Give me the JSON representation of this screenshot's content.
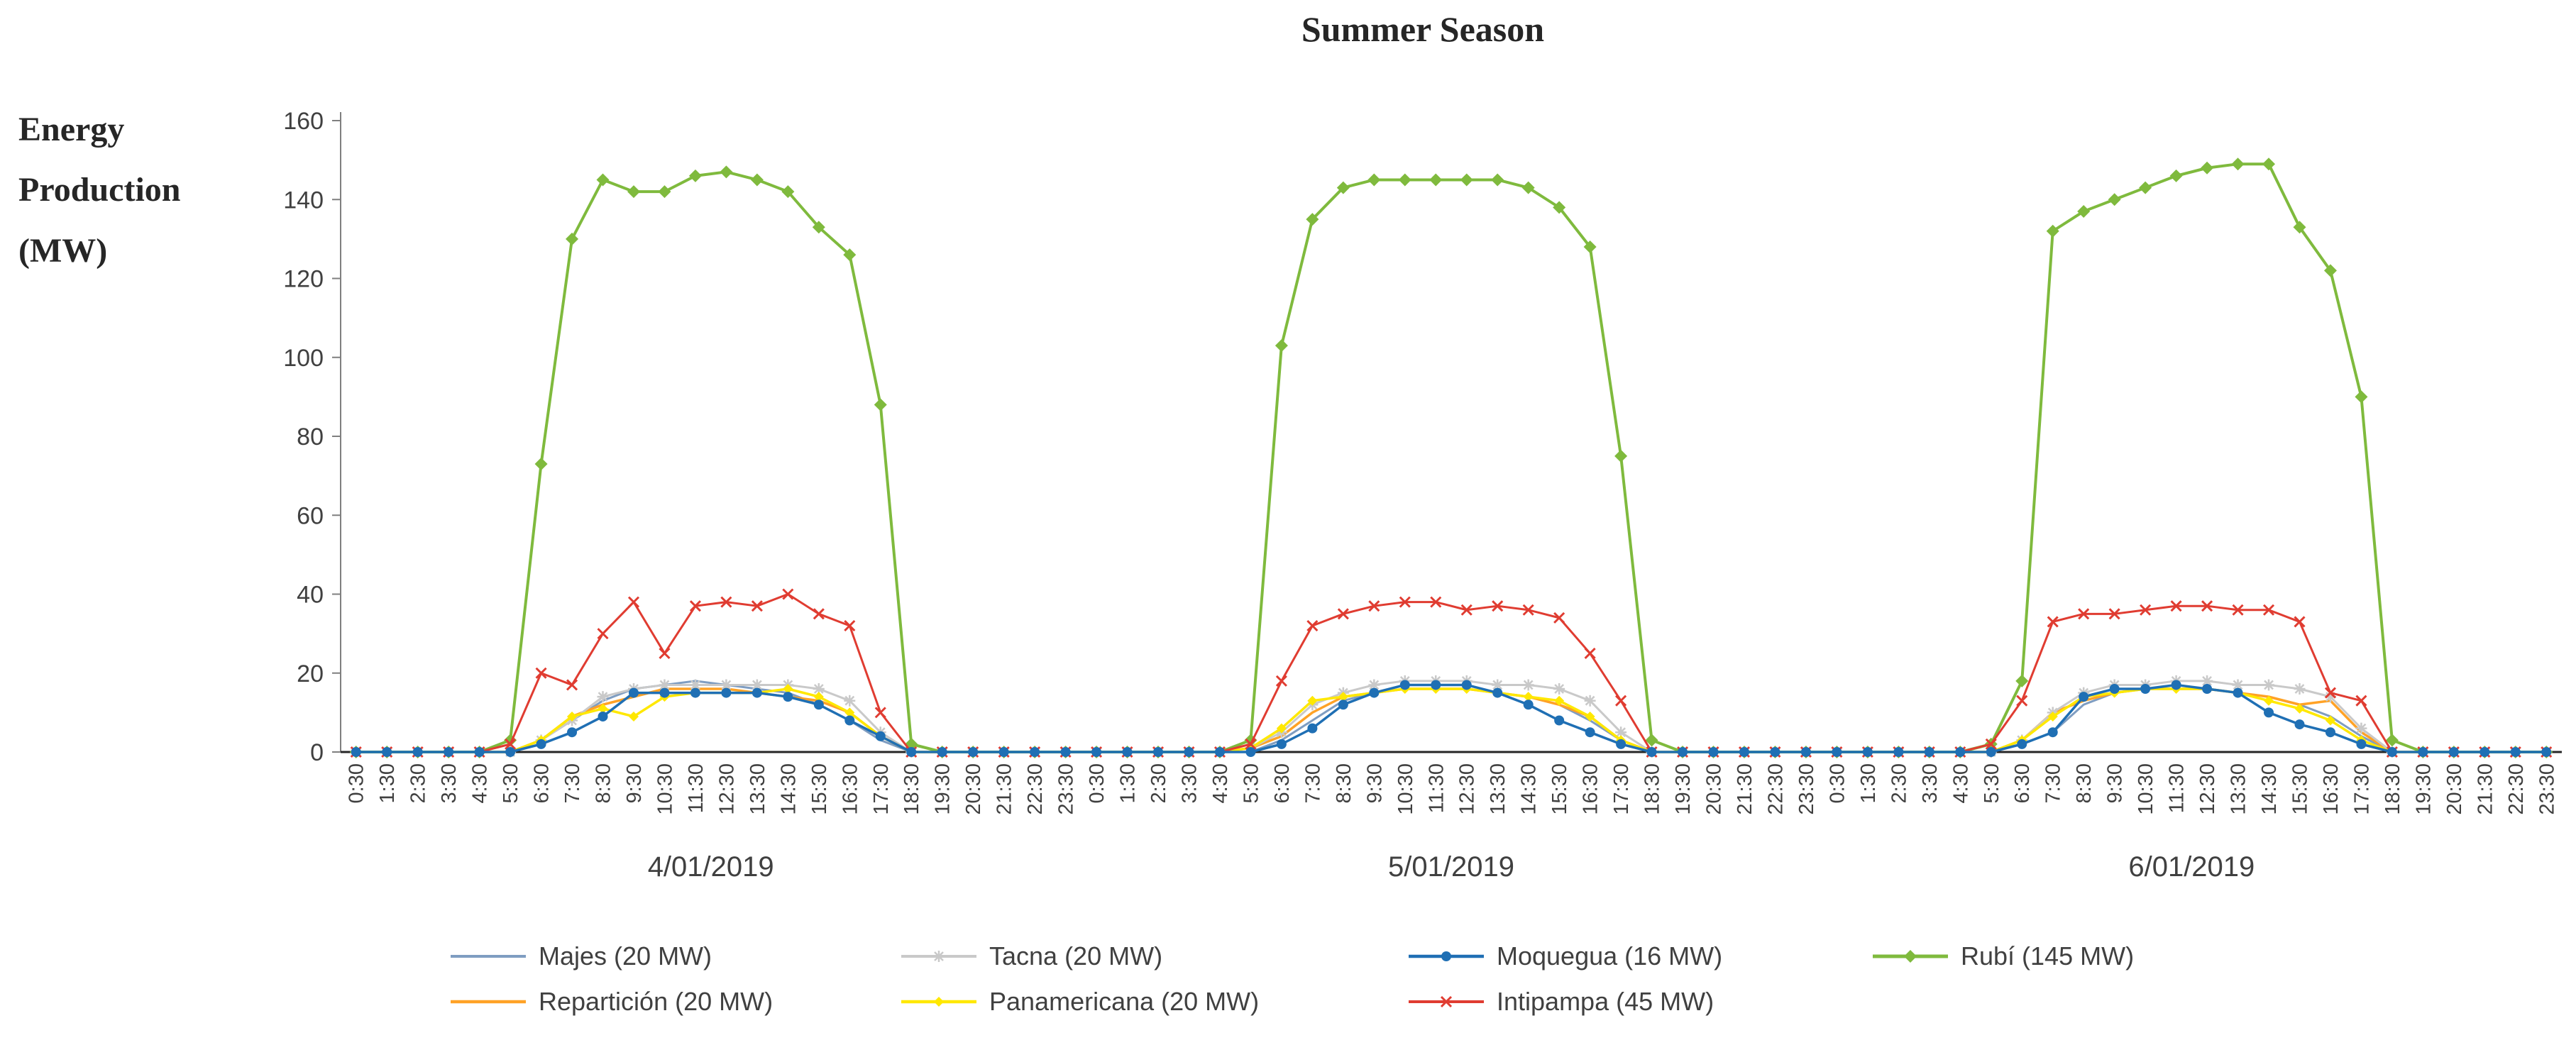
{
  "title": "Summer Season",
  "y_axis_label_lines": [
    "Energy",
    "Production",
    "(MW)"
  ],
  "chart_data": {
    "type": "line",
    "title": "Summer Season",
    "ylabel": "Energy Production (MW)",
    "xlabel": "",
    "ylim": [
      0,
      160
    ],
    "ytick_interval": 20,
    "grid": false,
    "legend_position": "bottom",
    "axis_color": "#7f7f7f",
    "baseline_color": "#262626",
    "tick_label_color": "#404040",
    "days": [
      "4/01/2019",
      "5/01/2019",
      "6/01/2019"
    ],
    "times": [
      "0:30",
      "1:30",
      "2:30",
      "3:30",
      "4:30",
      "5:30",
      "6:30",
      "7:30",
      "8:30",
      "9:30",
      "10:30",
      "11:30",
      "12:30",
      "13:30",
      "14:30",
      "15:30",
      "16:30",
      "17:30",
      "18:30",
      "19:30",
      "20:30",
      "21:30",
      "22:30",
      "23:30"
    ],
    "series": [
      {
        "name": "Majes (20 MW)",
        "color": "#7f9dc1",
        "marker": "none",
        "width": 3,
        "values": [
          0,
          0,
          0,
          0,
          0,
          0,
          3,
          8,
          13,
          16,
          17,
          18,
          17,
          16,
          15,
          12,
          8,
          3,
          0,
          0,
          0,
          0,
          0,
          0,
          0,
          0,
          0,
          0,
          0,
          0,
          3,
          8,
          13,
          15,
          16,
          16,
          16,
          15,
          14,
          12,
          8,
          3,
          0,
          0,
          0,
          0,
          0,
          0,
          0,
          0,
          0,
          0,
          0,
          0,
          2,
          5,
          12,
          15,
          16,
          16,
          16,
          15,
          14,
          12,
          9,
          4,
          0,
          0,
          0,
          0,
          0,
          0
        ]
      },
      {
        "name": "Repartición (20 MW)",
        "color": "#ffa226",
        "marker": "none",
        "width": 3.5,
        "values": [
          0,
          0,
          0,
          0,
          0,
          0,
          3,
          9,
          12,
          14,
          16,
          16,
          16,
          15,
          14,
          13,
          10,
          4,
          0,
          0,
          0,
          0,
          0,
          0,
          0,
          0,
          0,
          0,
          0,
          1,
          4,
          10,
          14,
          15,
          16,
          16,
          16,
          15,
          14,
          12,
          9,
          3,
          0,
          0,
          0,
          0,
          0,
          0,
          0,
          0,
          0,
          0,
          0,
          0,
          3,
          10,
          13,
          15,
          16,
          16,
          16,
          15,
          14,
          12,
          13,
          5,
          0,
          0,
          0,
          0,
          0,
          0
        ]
      },
      {
        "name": "Tacna (20 MW)",
        "color": "#c9c9c9",
        "marker": "asterisk",
        "width": 3,
        "values": [
          0,
          0,
          0,
          0,
          0,
          0,
          3,
          8,
          14,
          16,
          17,
          17,
          17,
          17,
          17,
          16,
          13,
          5,
          0,
          0,
          0,
          0,
          0,
          0,
          0,
          0,
          0,
          0,
          0,
          1,
          5,
          12,
          15,
          17,
          18,
          18,
          18,
          17,
          17,
          16,
          13,
          5,
          0,
          0,
          0,
          0,
          0,
          0,
          0,
          0,
          0,
          0,
          0,
          0,
          3,
          10,
          15,
          17,
          17,
          18,
          18,
          17,
          17,
          16,
          14,
          6,
          0,
          0,
          0,
          0,
          0,
          0
        ]
      },
      {
        "name": "Panamericana (20 MW)",
        "color": "#ffe800",
        "marker": "diamond-small",
        "width": 3.5,
        "values": [
          0,
          0,
          0,
          0,
          0,
          0,
          3,
          9,
          11,
          9,
          14,
          15,
          15,
          15,
          16,
          14,
          10,
          4,
          0,
          0,
          0,
          0,
          0,
          0,
          0,
          0,
          0,
          0,
          0,
          1,
          6,
          13,
          14,
          15,
          16,
          16,
          16,
          15,
          14,
          13,
          9,
          3,
          0,
          0,
          0,
          0,
          0,
          0,
          0,
          0,
          0,
          0,
          0,
          0,
          3,
          9,
          14,
          15,
          16,
          16,
          16,
          15,
          13,
          11,
          8,
          3,
          0,
          0,
          0,
          0,
          0,
          0
        ]
      },
      {
        "name": "Rubí (145 MW)",
        "color": "#7fba3d",
        "marker": "diamond",
        "width": 4,
        "values": [
          0,
          0,
          0,
          0,
          0,
          3,
          73,
          130,
          145,
          142,
          142,
          146,
          147,
          145,
          142,
          133,
          126,
          88,
          2,
          0,
          0,
          0,
          0,
          0,
          0,
          0,
          0,
          0,
          0,
          3,
          103,
          135,
          143,
          145,
          145,
          145,
          145,
          145,
          143,
          138,
          128,
          75,
          3,
          0,
          0,
          0,
          0,
          0,
          0,
          0,
          0,
          0,
          0,
          2,
          18,
          132,
          137,
          140,
          143,
          146,
          148,
          149,
          149,
          133,
          122,
          90,
          3,
          0,
          0,
          0,
          0,
          0
        ]
      },
      {
        "name": "Intipampa (45 MW)",
        "color": "#e03c31",
        "marker": "x",
        "width": 3,
        "values": [
          0,
          0,
          0,
          0,
          0,
          2,
          20,
          17,
          30,
          38,
          25,
          37,
          38,
          37,
          40,
          35,
          32,
          10,
          0,
          0,
          0,
          0,
          0,
          0,
          0,
          0,
          0,
          0,
          0,
          2,
          18,
          32,
          35,
          37,
          38,
          38,
          36,
          37,
          36,
          34,
          25,
          13,
          0,
          0,
          0,
          0,
          0,
          0,
          0,
          0,
          0,
          0,
          0,
          2,
          13,
          33,
          35,
          35,
          36,
          37,
          37,
          36,
          36,
          33,
          15,
          13,
          0,
          0,
          0,
          0,
          0,
          0
        ]
      },
      {
        "name": "Moquegua (16 MW)",
        "color": "#1f6fb4",
        "marker": "circle",
        "width": 3.5,
        "values": [
          0,
          0,
          0,
          0,
          0,
          0,
          2,
          5,
          9,
          15,
          15,
          15,
          15,
          15,
          14,
          12,
          8,
          4,
          0,
          0,
          0,
          0,
          0,
          0,
          0,
          0,
          0,
          0,
          0,
          0,
          2,
          6,
          12,
          15,
          17,
          17,
          17,
          15,
          12,
          8,
          5,
          2,
          0,
          0,
          0,
          0,
          0,
          0,
          0,
          0,
          0,
          0,
          0,
          0,
          2,
          5,
          14,
          16,
          16,
          17,
          16,
          15,
          10,
          7,
          5,
          2,
          0,
          0,
          0,
          0,
          0,
          0
        ]
      }
    ],
    "legend_columns": [
      [
        0,
        1
      ],
      [
        2,
        3
      ],
      [
        6,
        5
      ],
      [
        4
      ]
    ]
  }
}
